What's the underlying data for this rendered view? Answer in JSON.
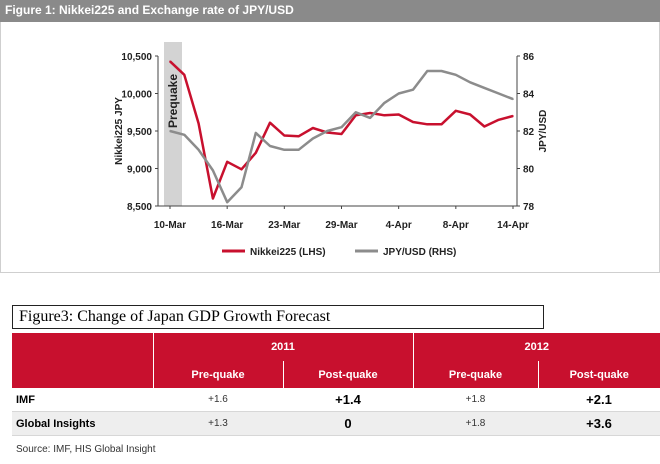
{
  "figure1": {
    "title": "Figure 1: Nikkei225 and Exchange rate of JPY/USD",
    "prequake_label": "Prequake"
  },
  "chart_data": {
    "type": "line",
    "title": "Figure 1: Nikkei225 and Exchange rate of JPY/USD",
    "x": [
      "10-Mar",
      "11-Mar",
      "14-Mar",
      "15-Mar",
      "16-Mar",
      "17-Mar",
      "18-Mar",
      "22-Mar",
      "23-Mar",
      "24-Mar",
      "25-Mar",
      "28-Mar",
      "29-Mar",
      "30-Mar",
      "31-Mar",
      "1-Apr",
      "4-Apr",
      "5-Apr",
      "6-Apr",
      "7-Apr",
      "8-Apr",
      "11-Apr",
      "12-Apr",
      "13-Apr",
      "14-Apr"
    ],
    "xticks": [
      "10-Mar",
      "16-Mar",
      "23-Mar",
      "29-Mar",
      "4-Apr",
      "8-Apr",
      "14-Apr"
    ],
    "series": [
      {
        "name": "Nikkei225 (LHS)",
        "axis": "left",
        "color": "#c8102e",
        "values": [
          10430,
          10250,
          9600,
          8600,
          9090,
          8990,
          9210,
          9610,
          9440,
          9430,
          9540,
          9480,
          9460,
          9710,
          9740,
          9710,
          9720,
          9620,
          9590,
          9590,
          9770,
          9720,
          9560,
          9650,
          9700
        ]
      },
      {
        "name": "JPY/USD (RHS)",
        "axis": "right",
        "color": "#8c8c8c",
        "values": [
          82.0,
          81.8,
          81.0,
          79.9,
          78.2,
          79.0,
          81.9,
          81.2,
          81.0,
          81.0,
          81.6,
          82.0,
          82.2,
          83.0,
          82.7,
          83.5,
          84.0,
          84.2,
          85.2,
          85.2,
          85.0,
          84.6,
          84.3,
          84.0,
          83.7
        ]
      }
    ],
    "ylabel_left": "Nikkei225  JPY",
    "ylabel_right": "JPY/USD",
    "ylim_left": [
      8500,
      10500
    ],
    "yticks_left": [
      "8,500",
      "9,000",
      "9,500",
      "10,000",
      "10,500"
    ],
    "ylim_right": [
      78,
      86
    ],
    "yticks_right": [
      "78",
      "80",
      "82",
      "84",
      "86"
    ],
    "legend": [
      "Nikkei225 (LHS)",
      "JPY/USD (RHS)"
    ],
    "legend_position": "bottom",
    "grid": false
  },
  "figure3": {
    "title": "Figure3: Change of Japan GDP Growth Forecast",
    "years": [
      "2011",
      "2012"
    ],
    "subheaders": [
      "Pre-quake",
      "Post-quake",
      "Pre-quake",
      "Post-quake"
    ],
    "rows": [
      {
        "label": "IMF",
        "values": [
          "+1.6",
          "+1.4",
          "+1.8",
          "+2.1"
        ]
      },
      {
        "label": "Global Insights",
        "values": [
          "+1.3",
          "0",
          "+1.8",
          "+3.6"
        ]
      }
    ],
    "source": "Source: IMF, HIS Global Insight"
  }
}
